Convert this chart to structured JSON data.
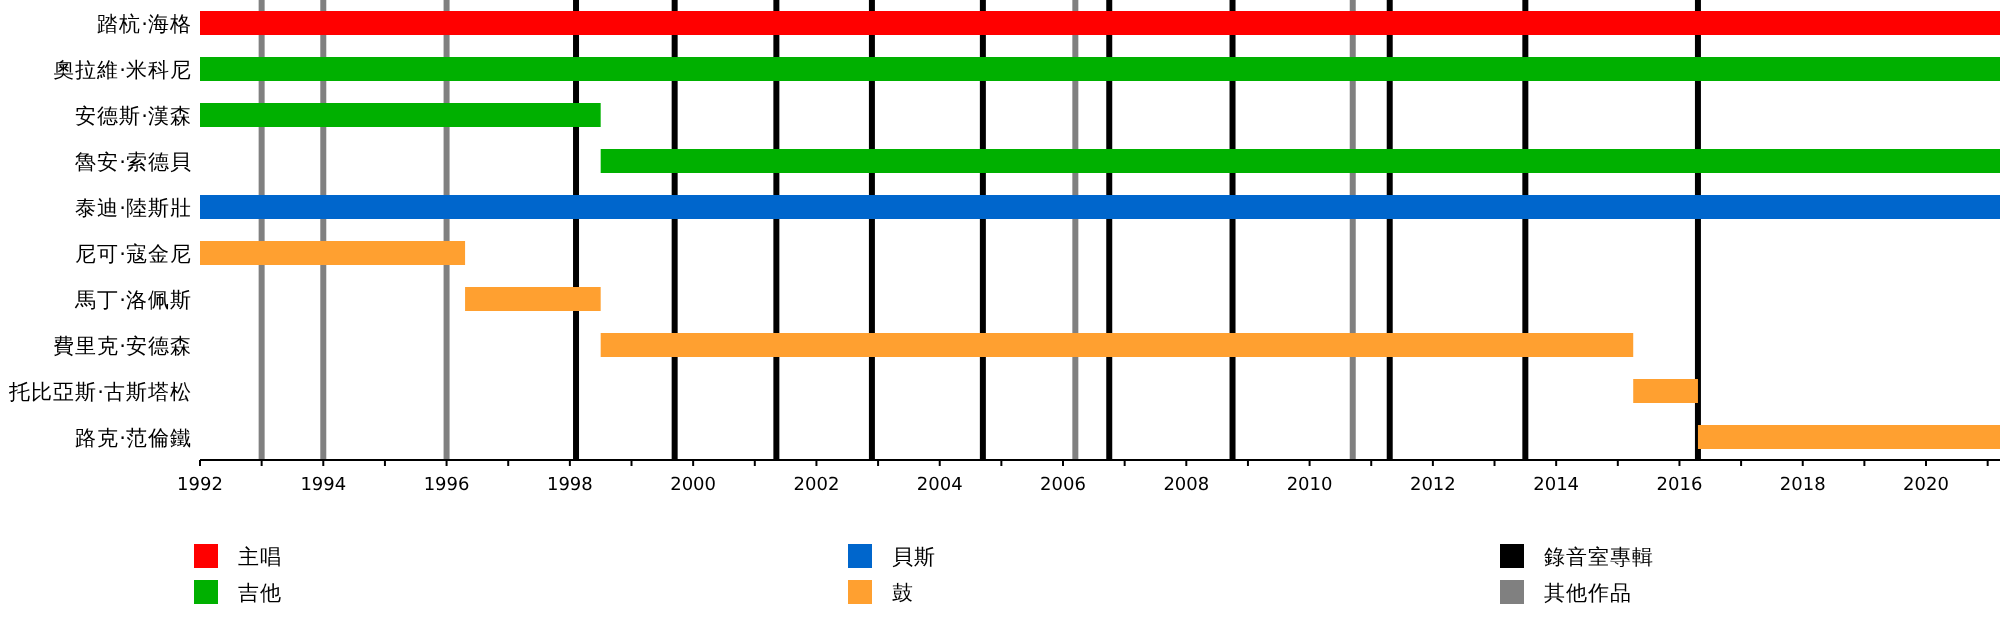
{
  "chart_data": {
    "type": "bar",
    "orientation": "horizontal",
    "legend": "bottom",
    "categories": [
      "踏杭·海格",
      "奧拉維·米科尼",
      "安德斯·漢森",
      "魯安·索德貝",
      "泰迪·陸斯壯",
      "尼可·寇金尼",
      "馬丁·洛佩斯",
      "費里克·安德森",
      "托比亞斯·古斯塔松",
      "路克·范倫鐵"
    ],
    "series": [
      {
        "name": "主唱",
        "color": "#ff0000",
        "base": [
          1992,
          null,
          null,
          null,
          null,
          null,
          null,
          null,
          null,
          null
        ],
        "values": [
          29.2,
          null,
          null,
          null,
          null,
          null,
          null,
          null,
          null,
          null
        ]
      },
      {
        "name": "吉他",
        "color": "#00b000",
        "base": [
          null,
          1992,
          1992,
          1998.5,
          null,
          null,
          null,
          null,
          null,
          null
        ],
        "values": [
          null,
          29.2,
          6.5,
          22.7,
          null,
          null,
          null,
          null,
          null,
          null
        ]
      },
      {
        "name": "貝斯",
        "color": "#0066cc",
        "base": [
          null,
          null,
          null,
          null,
          1992,
          null,
          null,
          null,
          null,
          null
        ],
        "values": [
          null,
          null,
          null,
          null,
          29.2,
          null,
          null,
          null,
          null,
          null
        ]
      },
      {
        "name": "鼓",
        "color": "#ffa030",
        "base": [
          null,
          null,
          null,
          null,
          null,
          1992,
          1996.3,
          1998.5,
          2015.25,
          2016.3
        ],
        "values": [
          null,
          null,
          null,
          null,
          null,
          4.3,
          2.2,
          16.75,
          1.05,
          4.9
        ]
      }
    ],
    "xlim": [
      1992,
      2021.2
    ],
    "xticks": [
      1992,
      {
        "value": 1993,
        "label": null
      },
      1994,
      {
        "value": 1995,
        "label": null
      },
      1996,
      {
        "value": 1997,
        "label": null
      },
      1998,
      {
        "value": 1999,
        "label": null
      },
      2000,
      {
        "value": 2001,
        "label": null
      },
      2002,
      {
        "value": 2003,
        "label": null
      },
      2004,
      {
        "value": 2005,
        "label": null
      },
      2006,
      {
        "value": 2007,
        "label": null
      },
      2008,
      {
        "value": 2009,
        "label": null
      },
      2010,
      {
        "value": 2011,
        "label": null
      },
      2012,
      {
        "value": 2013,
        "label": null
      },
      2014,
      {
        "value": 2015,
        "label": null
      },
      2016,
      {
        "value": 2017,
        "label": null
      },
      2018,
      {
        "value": 2019,
        "label": null
      },
      2020,
      {
        "value": 2021,
        "label": null
      }
    ],
    "ref_lines": [
      {
        "axis": "x",
        "value": 1998.1,
        "label": "錄音室專輯",
        "color": "#000000"
      },
      {
        "axis": "x",
        "value": 1999.7,
        "color": "#000000"
      },
      {
        "axis": "x",
        "value": 2001.35,
        "color": "#000000"
      },
      {
        "axis": "x",
        "value": 2002.9,
        "color": "#000000"
      },
      {
        "axis": "x",
        "value": 2004.7,
        "color": "#000000"
      },
      {
        "axis": "x",
        "value": 2006.75,
        "color": "#000000"
      },
      {
        "axis": "x",
        "value": 2008.75,
        "color": "#000000"
      },
      {
        "axis": "x",
        "value": 2011.3,
        "color": "#000000"
      },
      {
        "axis": "x",
        "value": 2013.5,
        "color": "#000000"
      },
      {
        "axis": "x",
        "value": 2016.3,
        "color": "#000000"
      },
      {
        "axis": "x",
        "value": 1993.0,
        "label": "其他作品",
        "color": "#808080"
      },
      {
        "axis": "x",
        "value": 1994.0,
        "color": "#808080"
      },
      {
        "axis": "x",
        "value": 1996.0,
        "color": "#808080"
      },
      {
        "axis": "x",
        "value": 2006.2,
        "color": "#808080"
      },
      {
        "axis": "x",
        "value": 2010.7,
        "color": "#808080"
      }
    ]
  }
}
